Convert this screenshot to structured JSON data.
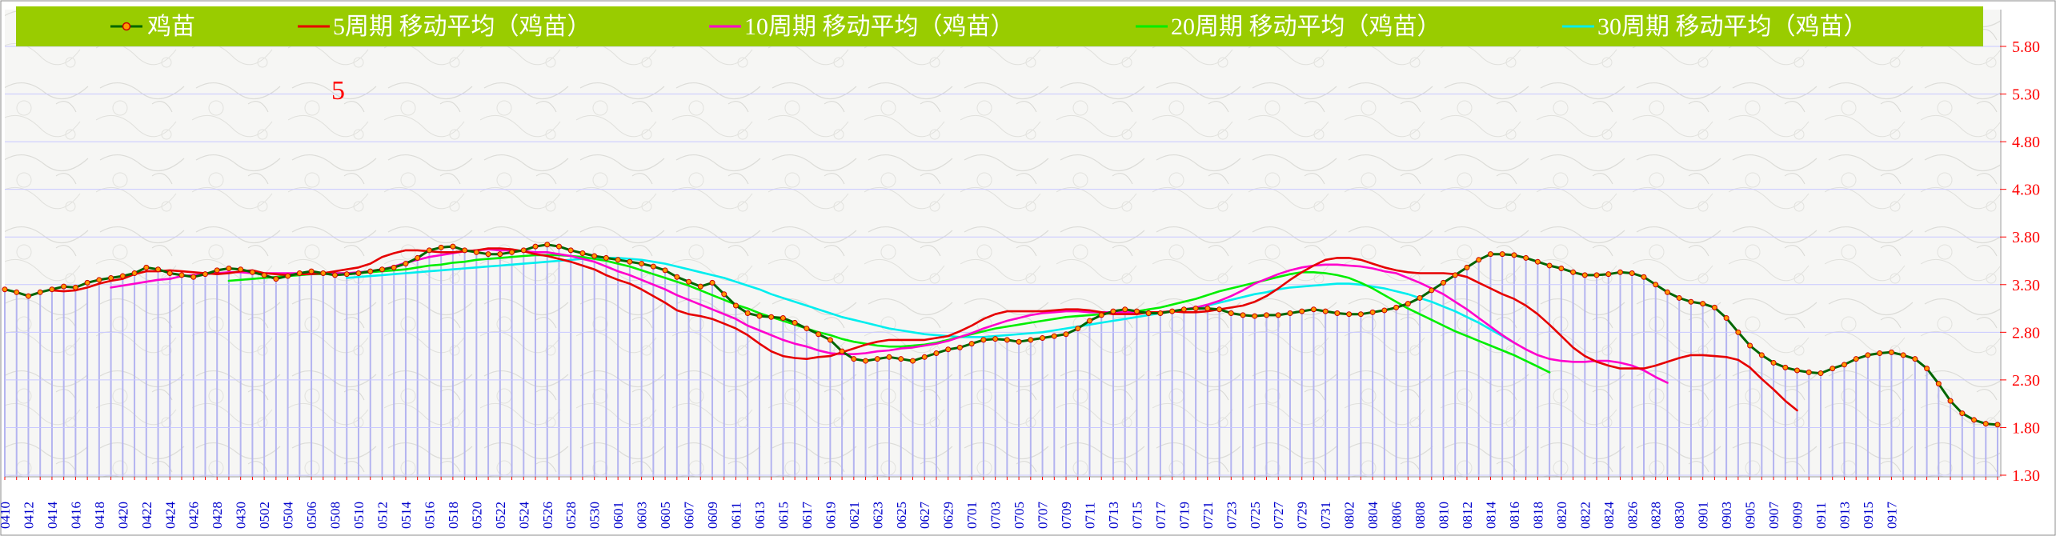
{
  "chart_data": {
    "type": "line",
    "annotation": "5",
    "y_ticks": [
      "5.80",
      "5.30",
      "4.80",
      "4.30",
      "3.80",
      "3.30",
      "2.80",
      "2.30",
      "1.80",
      "1.30"
    ],
    "ylim": [
      1.3,
      5.8
    ],
    "y_axis_side": "right",
    "x_labels": [
      "0410",
      "0412",
      "0414",
      "0416",
      "0418",
      "0420",
      "0422",
      "0424",
      "0426",
      "0428",
      "0430",
      "0502",
      "0504",
      "0506",
      "0508",
      "0510",
      "0512",
      "0514",
      "0516",
      "0518",
      "0520",
      "0522",
      "0524",
      "0526",
      "0528",
      "0530",
      "0601",
      "0603",
      "0605",
      "0607",
      "0609",
      "0611",
      "0613",
      "0615",
      "0617",
      "0619",
      "0621",
      "0623",
      "0625",
      "0627",
      "0629",
      "0701",
      "0703",
      "0705",
      "0707",
      "0709",
      "0711",
      "0713",
      "0715",
      "0717",
      "0719",
      "0721",
      "0723",
      "0725",
      "0727",
      "0729",
      "0731",
      "0802",
      "0804",
      "0806",
      "0808",
      "0810",
      "0812",
      "0814",
      "0816",
      "0818",
      "0820",
      "0822",
      "0824",
      "0826",
      "0828",
      "0830",
      "0901",
      "0903",
      "0905",
      "0907",
      "0909",
      "0911",
      "0913",
      "0915",
      "0917"
    ],
    "legend_position": "top",
    "grid": true,
    "colors": {
      "legend_bg": "#99cc00",
      "price": "#006600",
      "price_marker_fill": "#ff9900",
      "price_marker_stroke": "#cc0000",
      "ma5": "#e60000",
      "ma10": "#ff00cc",
      "ma20": "#00ee00",
      "ma30": "#00eeee",
      "volume_bars": "#b4b4f0",
      "gridline": "#c8c8ff",
      "axis_text": "#ff0000",
      "x_text": "#0000cc"
    },
    "series": [
      {
        "name": "鸡苗",
        "key": "price",
        "start_index": 0,
        "values": [
          3.25,
          3.22,
          3.18,
          3.22,
          3.25,
          3.28,
          3.27,
          3.32,
          3.35,
          3.37,
          3.39,
          3.42,
          3.48,
          3.46,
          3.42,
          3.4,
          3.38,
          3.41,
          3.45,
          3.47,
          3.46,
          3.43,
          3.4,
          3.36,
          3.39,
          3.42,
          3.44,
          3.42,
          3.4,
          3.41,
          3.42,
          3.44,
          3.46,
          3.48,
          3.52,
          3.58,
          3.66,
          3.69,
          3.7,
          3.66,
          3.64,
          3.62,
          3.62,
          3.64,
          3.66,
          3.7,
          3.72,
          3.7,
          3.66,
          3.63,
          3.6,
          3.58,
          3.56,
          3.54,
          3.52,
          3.49,
          3.45,
          3.38,
          3.33,
          3.28,
          3.32,
          3.2,
          3.08,
          3.0,
          2.97,
          2.96,
          2.95,
          2.9,
          2.84,
          2.78,
          2.72,
          2.6,
          2.52,
          2.5,
          2.52,
          2.54,
          2.52,
          2.5,
          2.54,
          2.58,
          2.62,
          2.64,
          2.68,
          2.72,
          2.73,
          2.72,
          2.7,
          2.72,
          2.74,
          2.76,
          2.78,
          2.84,
          2.92,
          2.98,
          3.02,
          3.04,
          3.02,
          3.0,
          3.0,
          3.02,
          3.04,
          3.05,
          3.05,
          3.04,
          3.0,
          2.98,
          2.97,
          2.98,
          2.98,
          3.0,
          3.02,
          3.04,
          3.02,
          3.0,
          2.99,
          2.99,
          3.01,
          3.03,
          3.06,
          3.1,
          3.16,
          3.24,
          3.32,
          3.4,
          3.48,
          3.56,
          3.62,
          3.62,
          3.61,
          3.58,
          3.54,
          3.5,
          3.47,
          3.43,
          3.4,
          3.4,
          3.41,
          3.43,
          3.42,
          3.38,
          3.3,
          3.22,
          3.16,
          3.12,
          3.1,
          3.06,
          2.95,
          2.8,
          2.66,
          2.56,
          2.48,
          2.43,
          2.4,
          2.38,
          2.37,
          2.42,
          2.46,
          2.52,
          2.56,
          2.58,
          2.59,
          2.56,
          2.52,
          2.42,
          2.26,
          2.08,
          1.95,
          1.88,
          1.84,
          1.83
        ]
      },
      {
        "name": "5周期 移动平均（鸡苗）",
        "key": "ma5",
        "start_index": 4,
        "values": [
          3.24,
          3.23,
          3.24,
          3.27,
          3.31,
          3.34,
          3.36,
          3.41,
          3.44,
          3.44,
          3.45,
          3.44,
          3.43,
          3.42,
          3.41,
          3.42,
          3.44,
          3.45,
          3.42,
          3.41,
          3.4,
          3.41,
          3.41,
          3.42,
          3.44,
          3.46,
          3.48,
          3.52,
          3.59,
          3.63,
          3.66,
          3.66,
          3.65,
          3.64,
          3.64,
          3.65,
          3.66,
          3.68,
          3.68,
          3.67,
          3.65,
          3.62,
          3.6,
          3.57,
          3.54,
          3.5,
          3.46,
          3.4,
          3.35,
          3.31,
          3.25,
          3.18,
          3.11,
          3.03,
          2.99,
          2.97,
          2.94,
          2.89,
          2.84,
          2.77,
          2.68,
          2.6,
          2.55,
          2.53,
          2.52,
          2.54,
          2.55,
          2.59,
          2.63,
          2.67,
          2.7,
          2.72,
          2.72,
          2.72,
          2.72,
          2.74,
          2.76,
          2.81,
          2.87,
          2.94,
          2.99,
          3.02,
          3.02,
          3.02,
          3.02,
          3.03,
          3.04,
          3.04,
          3.03,
          3.01,
          2.99,
          2.99,
          2.99,
          3.01,
          3.01,
          3.02,
          3.01,
          3.01,
          3.02,
          3.04,
          3.06,
          3.08,
          3.12,
          3.18,
          3.26,
          3.35,
          3.43,
          3.5,
          3.56,
          3.58,
          3.58,
          3.56,
          3.52,
          3.48,
          3.45,
          3.43,
          3.42,
          3.42,
          3.42,
          3.41,
          3.38,
          3.32,
          3.26,
          3.2,
          3.15,
          3.08,
          2.99,
          2.88,
          2.76,
          2.64,
          2.55,
          2.49,
          2.45,
          2.42,
          2.42,
          2.42,
          2.45,
          2.49,
          2.53,
          2.56,
          2.56,
          2.55,
          2.54,
          2.51,
          2.43,
          2.31,
          2.2,
          2.08,
          1.98
        ]
      },
      {
        "name": "10周期 移动平均（鸡苗）",
        "key": "ma10",
        "start_index": 9,
        "values": [
          3.27,
          3.29,
          3.31,
          3.33,
          3.35,
          3.36,
          3.39,
          3.4,
          3.41,
          3.42,
          3.43,
          3.43,
          3.42,
          3.42,
          3.42,
          3.42,
          3.42,
          3.42,
          3.42,
          3.42,
          3.42,
          3.43,
          3.44,
          3.46,
          3.49,
          3.53,
          3.56,
          3.59,
          3.61,
          3.63,
          3.65,
          3.66,
          3.67,
          3.66,
          3.66,
          3.65,
          3.64,
          3.64,
          3.62,
          3.6,
          3.57,
          3.54,
          3.49,
          3.44,
          3.4,
          3.35,
          3.3,
          3.25,
          3.19,
          3.14,
          3.09,
          3.04,
          2.99,
          2.94,
          2.87,
          2.82,
          2.77,
          2.72,
          2.68,
          2.65,
          2.61,
          2.58,
          2.57,
          2.57,
          2.58,
          2.6,
          2.61,
          2.63,
          2.64,
          2.66,
          2.68,
          2.71,
          2.75,
          2.79,
          2.84,
          2.88,
          2.92,
          2.95,
          2.98,
          3.0,
          3.01,
          3.02,
          3.02,
          3.01,
          3.01,
          3.01,
          3.01,
          3.01,
          3.01,
          3.01,
          3.02,
          3.04,
          3.06,
          3.09,
          3.13,
          3.18,
          3.24,
          3.31,
          3.36,
          3.41,
          3.45,
          3.48,
          3.5,
          3.51,
          3.51,
          3.5,
          3.49,
          3.47,
          3.44,
          3.42,
          3.37,
          3.32,
          3.26,
          3.2,
          3.12,
          3.04,
          2.95,
          2.86,
          2.77,
          2.69,
          2.62,
          2.56,
          2.52,
          2.5,
          2.49,
          2.49,
          2.5,
          2.5,
          2.48,
          2.45,
          2.4,
          2.33,
          2.27
        ]
      },
      {
        "name": "20周期 移动平均（鸡苗）",
        "key": "ma20",
        "start_index": 19,
        "values": [
          3.34,
          3.35,
          3.36,
          3.37,
          3.38,
          3.39,
          3.4,
          3.41,
          3.41,
          3.42,
          3.42,
          3.42,
          3.43,
          3.44,
          3.45,
          3.46,
          3.48,
          3.5,
          3.51,
          3.53,
          3.54,
          3.56,
          3.57,
          3.58,
          3.59,
          3.6,
          3.61,
          3.61,
          3.61,
          3.6,
          3.59,
          3.57,
          3.55,
          3.52,
          3.49,
          3.45,
          3.41,
          3.37,
          3.33,
          3.29,
          3.24,
          3.19,
          3.14,
          3.09,
          3.05,
          3.0,
          2.96,
          2.92,
          2.88,
          2.84,
          2.8,
          2.77,
          2.73,
          2.7,
          2.68,
          2.66,
          2.65,
          2.65,
          2.66,
          2.67,
          2.69,
          2.72,
          2.75,
          2.78,
          2.81,
          2.84,
          2.86,
          2.88,
          2.9,
          2.92,
          2.94,
          2.96,
          2.97,
          2.98,
          2.99,
          3.0,
          3.01,
          3.02,
          3.04,
          3.06,
          3.09,
          3.12,
          3.15,
          3.19,
          3.23,
          3.26,
          3.29,
          3.32,
          3.35,
          3.38,
          3.41,
          3.43,
          3.43,
          3.42,
          3.4,
          3.37,
          3.32,
          3.26,
          3.19,
          3.12,
          3.05,
          2.99,
          2.93,
          2.87,
          2.81,
          2.76,
          2.71,
          2.66,
          2.61,
          2.56,
          2.5,
          2.44,
          2.38
        ]
      },
      {
        "name": "30周期 移动平均（鸡苗）",
        "key": "ma30",
        "start_index": 29,
        "values": [
          3.37,
          3.38,
          3.39,
          3.4,
          3.41,
          3.42,
          3.43,
          3.44,
          3.45,
          3.46,
          3.47,
          3.48,
          3.49,
          3.5,
          3.51,
          3.52,
          3.53,
          3.54,
          3.55,
          3.56,
          3.57,
          3.58,
          3.58,
          3.58,
          3.57,
          3.56,
          3.54,
          3.52,
          3.49,
          3.46,
          3.43,
          3.4,
          3.37,
          3.33,
          3.29,
          3.25,
          3.2,
          3.16,
          3.12,
          3.08,
          3.04,
          3.0,
          2.96,
          2.93,
          2.9,
          2.87,
          2.84,
          2.82,
          2.8,
          2.78,
          2.77,
          2.76,
          2.75,
          2.75,
          2.75,
          2.76,
          2.77,
          2.78,
          2.79,
          2.8,
          2.82,
          2.84,
          2.86,
          2.88,
          2.9,
          2.92,
          2.94,
          2.96,
          2.98,
          3.0,
          3.02,
          3.04,
          3.06,
          3.08,
          3.11,
          3.14,
          3.17,
          3.2,
          3.22,
          3.25,
          3.27,
          3.28,
          3.29,
          3.3,
          3.31,
          3.31,
          3.3,
          3.28,
          3.26,
          3.23,
          3.2,
          3.16,
          3.12,
          3.07,
          3.02,
          2.96,
          2.9,
          2.83,
          2.76,
          2.69
        ]
      }
    ]
  }
}
